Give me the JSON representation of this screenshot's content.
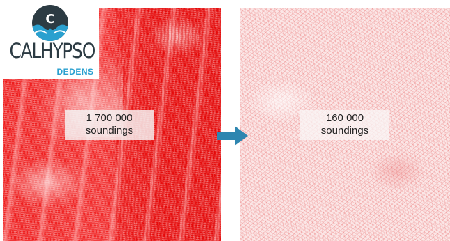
{
  "logo": {
    "name": "CALHYPSO",
    "subtitle": "DEDENS",
    "badge_letter": "C",
    "badge_color": "#2c3b43",
    "wave_color": "#2aa0cf"
  },
  "left_cloud": {
    "count": "1 700 000",
    "unit": "soundings",
    "color": "#ee1d1d"
  },
  "right_cloud": {
    "count": "160 000",
    "unit": "soundings",
    "color": "#e85a5a"
  },
  "arrow": {
    "icon": "arrow-right-icon",
    "color": "#2e86b0"
  }
}
